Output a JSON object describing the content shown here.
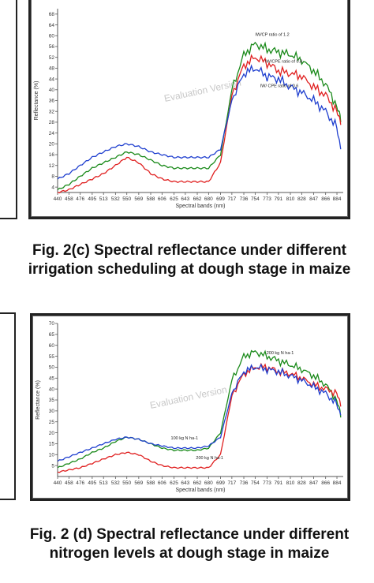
{
  "captions": {
    "c": "Fig. 2(c) Spectral reflectance under different irrigation scheduling at dough stage in maize",
    "d": "Fig. 2 (d) Spectral reflectance under different nitrogen levels at dough stage in maize"
  },
  "chart_data": [
    {
      "type": "line",
      "title": "",
      "xlabel": "Spectral bands (nm)",
      "ylabel": "Reflectance (%)",
      "watermark": "Evaluation Version",
      "xlim": [
        440,
        894
      ],
      "ylim": [
        2,
        70
      ],
      "xticks": [
        "440",
        "458",
        "476",
        "495",
        "513",
        "532",
        "550",
        "569",
        "588",
        "606",
        "625",
        "643",
        "662",
        "680",
        "699",
        "717",
        "736",
        "754",
        "773",
        "791",
        "810",
        "828",
        "847",
        "866",
        "884"
      ],
      "yticks": [
        4,
        8,
        12,
        16,
        20,
        24,
        28,
        32,
        36,
        40,
        44,
        48,
        52,
        56,
        60,
        64,
        68
      ],
      "grid": false,
      "x": [
        440,
        458,
        476,
        495,
        513,
        532,
        550,
        569,
        588,
        606,
        625,
        643,
        662,
        680,
        699,
        717,
        736,
        754,
        773,
        791,
        810,
        828,
        847,
        866,
        884,
        890
      ],
      "series": [
        {
          "name": "IW/CP ratio of 1.2",
          "color": "#1a8a1a",
          "values": [
            3,
            5,
            8,
            11,
            13,
            15,
            17,
            16,
            14,
            12,
            11,
            11,
            11,
            11,
            16,
            40,
            53,
            57,
            55,
            54,
            53,
            51,
            47,
            42,
            34,
            28
          ]
        },
        {
          "name": "IW/CPE ratio of 0.8",
          "color": "#e02020",
          "values": [
            2,
            3,
            5,
            7,
            9,
            12,
            15,
            13,
            9,
            7,
            6,
            6,
            6,
            6,
            13,
            38,
            49,
            52,
            50,
            47,
            46,
            45,
            41,
            38,
            32,
            27
          ]
        },
        {
          "name": "IW/ CPE ratio of 0.6",
          "color": "#1f3fcf",
          "values": [
            7,
            9,
            12,
            15,
            17,
            19,
            20,
            19,
            17,
            16,
            15,
            15,
            15,
            15,
            18,
            36,
            46,
            48,
            45,
            44,
            41,
            39,
            36,
            32,
            26,
            18
          ]
        }
      ],
      "legend_placement": "inline at series"
    },
    {
      "type": "line",
      "title": "",
      "xlabel": "Spectral bands (nm)",
      "ylabel": "Reflectance (%)",
      "watermark": "Evaluation Version",
      "xlim": [
        440,
        894
      ],
      "ylim": [
        0,
        70
      ],
      "xticks": [
        "440",
        "458",
        "476",
        "495",
        "513",
        "532",
        "550",
        "569",
        "588",
        "606",
        "625",
        "643",
        "662",
        "680",
        "699",
        "717",
        "736",
        "754",
        "773",
        "791",
        "810",
        "828",
        "847",
        "866",
        "884"
      ],
      "yticks": [
        5,
        10,
        15,
        20,
        25,
        30,
        35,
        40,
        45,
        50,
        55,
        60,
        65,
        70
      ],
      "grid": false,
      "x": [
        440,
        458,
        476,
        495,
        513,
        532,
        550,
        569,
        588,
        606,
        625,
        643,
        662,
        680,
        699,
        717,
        736,
        754,
        773,
        791,
        810,
        828,
        847,
        866,
        884,
        890
      ],
      "series": [
        {
          "name": "200 kg N ha-1",
          "color": "#1a8a1a",
          "values": [
            4,
            6,
            8,
            11,
            13,
            16,
            18,
            17,
            15,
            13,
            12,
            12,
            12,
            13,
            20,
            44,
            55,
            57,
            55,
            53,
            51,
            49,
            46,
            42,
            35,
            27
          ]
        },
        {
          "name": "",
          "color": "#e02020",
          "values": [
            2,
            3,
            4,
            6,
            8,
            10,
            11,
            10,
            7,
            5,
            4,
            4,
            4,
            4,
            10,
            37,
            47,
            50,
            50,
            48,
            47,
            45,
            42,
            40,
            38,
            32
          ]
        },
        {
          "name": "",
          "color": "#1f3fcf",
          "values": [
            7,
            9,
            11,
            13,
            15,
            17,
            18,
            17,
            15,
            14,
            13,
            13,
            13,
            14,
            18,
            38,
            48,
            50,
            49,
            48,
            46,
            44,
            41,
            38,
            33,
            28
          ]
        }
      ],
      "inline_labels": [
        "200 kg N ha-1",
        "100 kg N ha-1",
        "200 kg N ha-1"
      ],
      "legend_placement": "inline at series"
    }
  ]
}
